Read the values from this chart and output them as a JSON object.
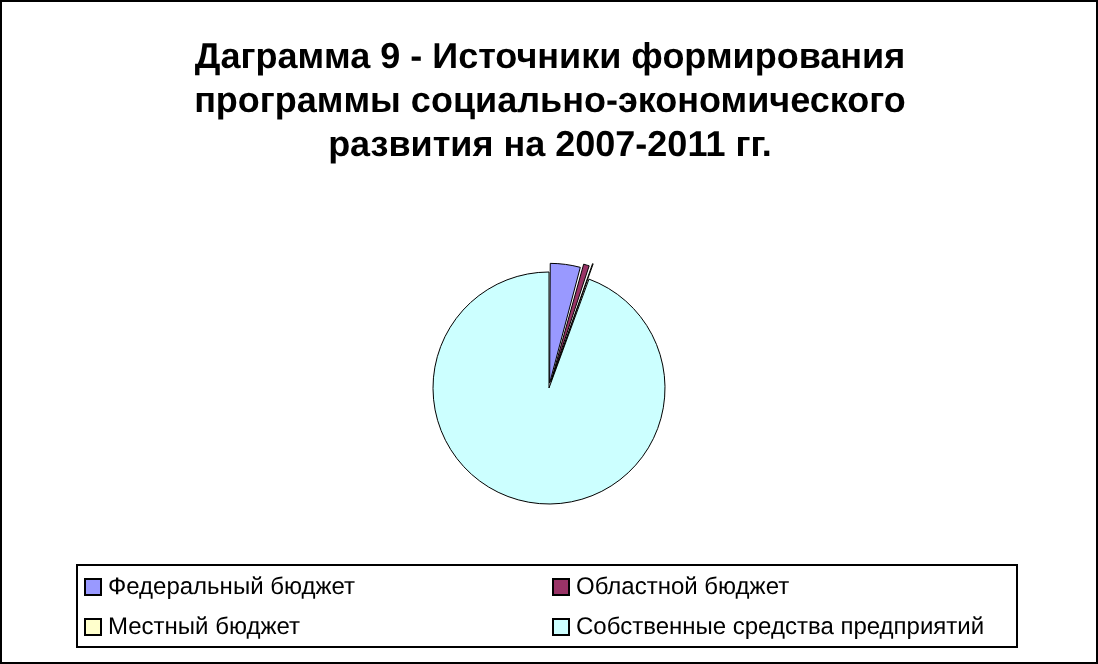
{
  "chart_data": {
    "type": "pie",
    "title": "Даграмма 9 - Источники формирования программы социально-экономического развития на 2007-2011 гг.",
    "categories": [
      "Федеральный бюджет",
      "Областной бюджет",
      "Местный бюджет",
      "Собственные средства предприятий"
    ],
    "values": [
      4.2,
      1.0,
      0.4,
      94.4
    ],
    "colors": [
      "#9999ff",
      "#993366",
      "#ffffcc",
      "#ccffff"
    ],
    "legend": "bottom"
  }
}
